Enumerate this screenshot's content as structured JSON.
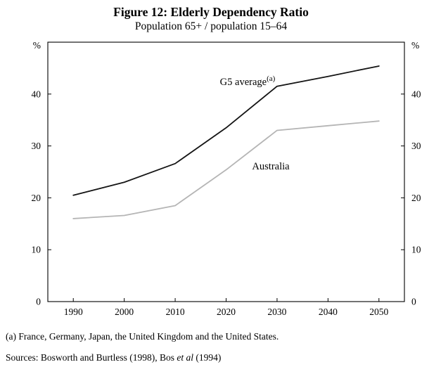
{
  "footnotes": {
    "note_a": "(a) France, Germany, Japan, the United Kingdom and the United States.",
    "sources_prefix": "Sources: Bosworth and Burtless (1998), Bos ",
    "sources_italic": "et al",
    "sources_suffix": " (1994)"
  },
  "chart_data": {
    "type": "line",
    "title": "Figure 12: Elderly Dependency Ratio",
    "subtitle": "Population 65+ / population 15–64",
    "x": [
      1990,
      2000,
      2010,
      2020,
      2030,
      2040,
      2050
    ],
    "series": [
      {
        "name": "G5 average",
        "label": "G5 average",
        "label_superscript": "(a)",
        "color": "#141414",
        "values": [
          20.5,
          23.0,
          26.6,
          33.5,
          41.5,
          43.4,
          45.4
        ]
      },
      {
        "name": "Australia",
        "label": "Australia",
        "label_superscript": "",
        "color": "#b5b5b5",
        "values": [
          16.0,
          16.6,
          18.5,
          25.4,
          33.0,
          33.9,
          34.8
        ]
      }
    ],
    "ylim": [
      0,
      50
    ],
    "yticks": [
      0,
      10,
      20,
      30,
      40
    ],
    "xticks": [
      1990,
      2000,
      2010,
      2020,
      2030,
      2040,
      2050
    ],
    "y_unit": "%",
    "xlabel": "",
    "ylabel": "",
    "grid": false,
    "legend_position": "inline-labels",
    "frame": "full-box"
  }
}
